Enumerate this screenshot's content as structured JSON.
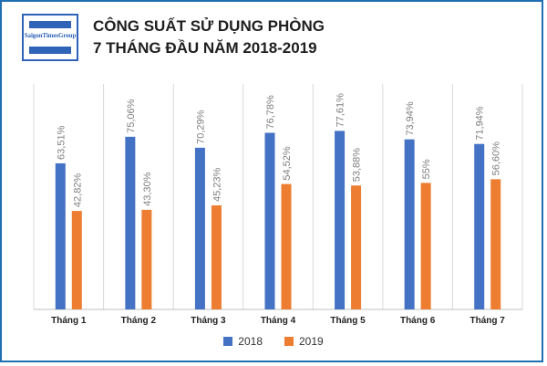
{
  "logo": {
    "text": "SaigonTimesGroup"
  },
  "title": {
    "line1": "CÔNG SUẤT SỬ DỤNG PHÒNG",
    "line2": "7 THÁNG ĐẦU NĂM 2018-2019"
  },
  "colors": {
    "series_2018": "#4472c4",
    "series_2019": "#ed7d31",
    "frame": "#1f6fb2",
    "grid": "#d9d9d9",
    "label": "#7f7f7f"
  },
  "chart_data": {
    "type": "bar",
    "title": "CÔNG SUẤT SỬ DỤNG PHÒNG 7 THÁNG ĐẦU NĂM 2018-2019",
    "categories": [
      "Tháng 1",
      "Tháng 2",
      "Tháng 3",
      "Tháng 4",
      "Tháng 5",
      "Tháng 6",
      "Tháng 7"
    ],
    "series": [
      {
        "name": "2018",
        "values": [
          63.51,
          75.06,
          70.29,
          76.78,
          77.61,
          73.94,
          71.94
        ],
        "labels": [
          "63,51%",
          "75,06%",
          "70,29%",
          "76,78%",
          "77,61%",
          "73,94%",
          "71,94%"
        ]
      },
      {
        "name": "2019",
        "values": [
          42.82,
          43.3,
          45.23,
          54.52,
          53.88,
          55,
          56.6
        ],
        "labels": [
          "42,82%",
          "43,30%",
          "45,23%",
          "54,52%",
          "53,88%",
          "55%",
          "56,60%"
        ]
      }
    ],
    "ylim": [
      0,
      90
    ],
    "xlabel": "",
    "ylabel": "",
    "grid": "vertical category separators",
    "legend_position": "bottom-center"
  }
}
